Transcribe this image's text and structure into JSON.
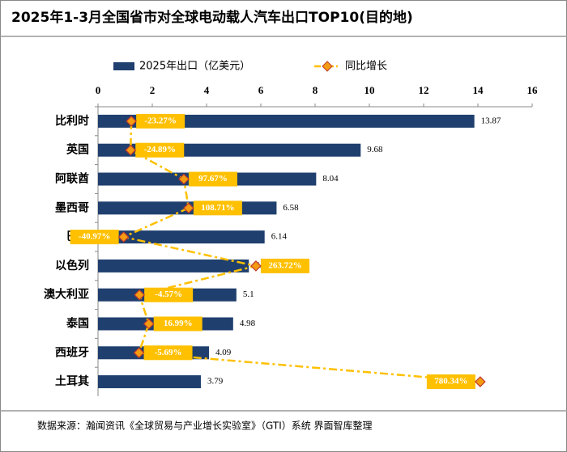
{
  "chart_data": {
    "type": "bar-line",
    "title": "2025年1-3月全国省市对全球电动载人汽车出口TOP10(目的地)",
    "categories": [
      "比利时",
      "英国",
      "阿联酋",
      "墨西哥",
      "巴西",
      "以色列",
      "澳大利亚",
      "泰国",
      "西班牙",
      "土耳其"
    ],
    "series": [
      {
        "name": "2025年出口（亿美元）",
        "color": "#1f3f6e",
        "values": [
          13.87,
          9.68,
          8.04,
          6.58,
          6.14,
          5.56,
          5.1,
          4.98,
          4.09,
          3.79
        ]
      },
      {
        "name": "同比增长",
        "color": "#ffc000",
        "axis": "x2",
        "values": [
          -23.27,
          -24.89,
          97.67,
          108.71,
          -40.97,
          263.72,
          -4.57,
          16.99,
          -5.69,
          780.34
        ],
        "value_labels": [
          "-23.27%",
          "-24.89%",
          "97.67%",
          "108.71%",
          "-40.97%",
          "263.72%",
          "-4.57%",
          "16.99%",
          "-5.69%",
          "780.34%"
        ]
      }
    ],
    "xlim": [
      0,
      16
    ],
    "xticks": [
      0,
      2,
      4,
      6,
      8,
      10,
      12,
      14,
      16
    ],
    "x2lim": [
      -100,
      900
    ],
    "source": "数据来源：瀚闻资讯《全球贸易与产业增长实验室》（GTI）系统   界面智库整理"
  }
}
